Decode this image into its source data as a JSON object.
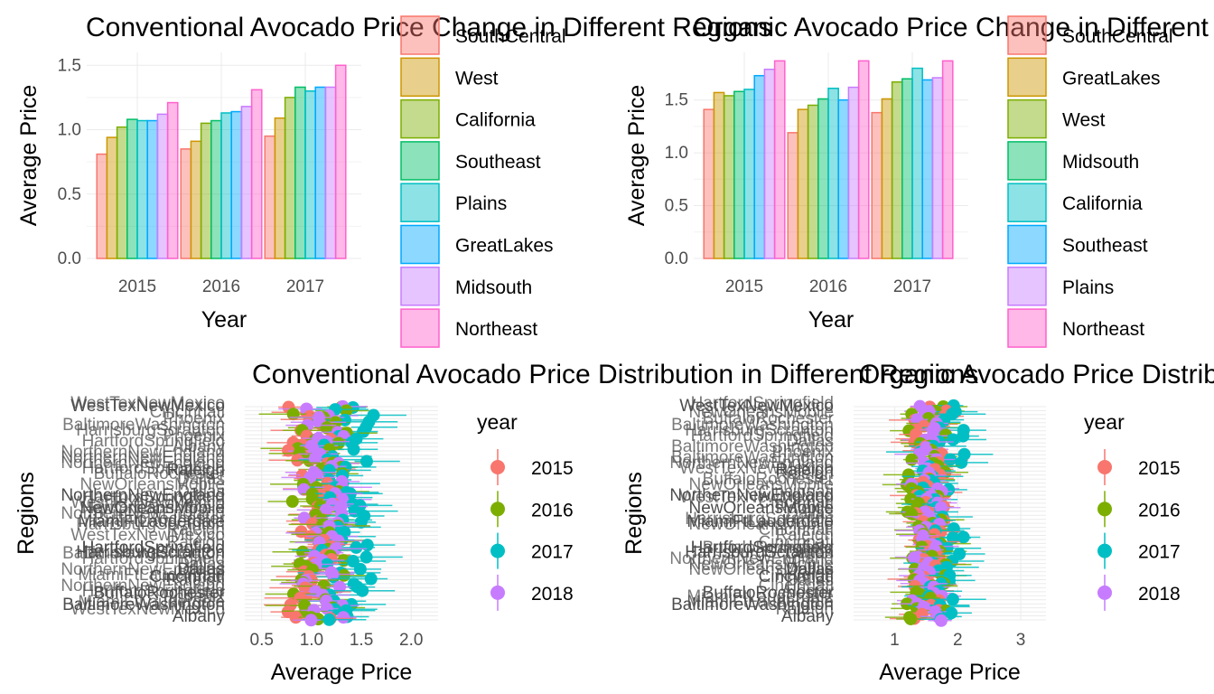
{
  "chart_data": [
    {
      "type": "bar",
      "title": "Conventional Avocado Price Change in Different Regions",
      "xlabel": "Year",
      "ylabel": "Average Price",
      "ylim": [
        0,
        1.6
      ],
      "yticks": [
        "0.0",
        "0.5",
        "1.0",
        "1.5"
      ],
      "categories": [
        "2015",
        "2016",
        "2017"
      ],
      "legend_position": "right",
      "series": [
        {
          "name": "SouthCentral",
          "color": "#F8766D",
          "values": [
            0.81,
            0.85,
            0.95
          ]
        },
        {
          "name": "West",
          "color": "#CD9600",
          "values": [
            0.94,
            0.91,
            1.09
          ]
        },
        {
          "name": "California",
          "color": "#7CAE00",
          "values": [
            1.02,
            1.05,
            1.25
          ]
        },
        {
          "name": "Southeast",
          "color": "#00BE67",
          "values": [
            1.08,
            1.07,
            1.33
          ]
        },
        {
          "name": "Plains",
          "color": "#00BFC4",
          "values": [
            1.07,
            1.13,
            1.3
          ]
        },
        {
          "name": "GreatLakes",
          "color": "#00A9FF",
          "values": [
            1.07,
            1.14,
            1.33
          ]
        },
        {
          "name": "Midsouth",
          "color": "#C77CFF",
          "values": [
            1.12,
            1.18,
            1.33
          ]
        },
        {
          "name": "Northeast",
          "color": "#FF61CC",
          "values": [
            1.21,
            1.31,
            1.5
          ]
        }
      ]
    },
    {
      "type": "bar",
      "title": "Organic Avocado Price Change in Different Regions",
      "xlabel": "Year",
      "ylabel": "Average Price",
      "ylim": [
        0,
        1.95
      ],
      "yticks": [
        "0.0",
        "0.5",
        "1.0",
        "1.5"
      ],
      "categories": [
        "2015",
        "2016",
        "2017"
      ],
      "legend_position": "right",
      "series": [
        {
          "name": "SouthCentral",
          "color": "#F8766D",
          "values": [
            1.41,
            1.19,
            1.38
          ]
        },
        {
          "name": "GreatLakes",
          "color": "#CD9600",
          "values": [
            1.57,
            1.41,
            1.51
          ]
        },
        {
          "name": "West",
          "color": "#7CAE00",
          "values": [
            1.54,
            1.45,
            1.67
          ]
        },
        {
          "name": "Midsouth",
          "color": "#00BE67",
          "values": [
            1.58,
            1.51,
            1.7
          ]
        },
        {
          "name": "California",
          "color": "#00BFC4",
          "values": [
            1.6,
            1.61,
            1.8
          ]
        },
        {
          "name": "Southeast",
          "color": "#00A9FF",
          "values": [
            1.73,
            1.5,
            1.69
          ]
        },
        {
          "name": "Plains",
          "color": "#C77CFF",
          "values": [
            1.79,
            1.62,
            1.71
          ]
        },
        {
          "name": "Northeast",
          "color": "#FF61CC",
          "values": [
            1.87,
            1.87,
            1.87
          ]
        }
      ]
    },
    {
      "type": "scatter",
      "title": "Conventional Avocado Price Distribution in Different Regions",
      "xlabel": "Average Price",
      "ylabel": "Regions",
      "xlim": [
        0.33,
        2.27
      ],
      "xticks": [
        0.5,
        1.0,
        1.5,
        2.0
      ],
      "xtick_labels": [
        "0.5",
        "1.0",
        "1.5",
        "2.0"
      ],
      "legend_title": "year",
      "legend_position": "right",
      "visible_region_labels": [
        "WestTexNewMexico",
        "Raleigh",
        "NorthernNewEngland",
        "NewOrleansMobile",
        "Phoenix",
        "MiamiFtLauderdale",
        "HartfordSpringfield",
        "HarrisburgScranton",
        "Cincinnati",
        "Dallas",
        "BuffaloRochester",
        "BaltimoreWashington",
        "Albany"
      ],
      "series": [
        {
          "name": "2015",
          "color": "#F8766D",
          "center": 1.0,
          "spread": 0.3
        },
        {
          "name": "2016",
          "color": "#7CAE00",
          "center": 1.08,
          "spread": 0.34
        },
        {
          "name": "2017",
          "color": "#00BFC4",
          "center": 1.36,
          "spread": 0.36
        },
        {
          "name": "2018",
          "color": "#C77CFF",
          "center": 1.12,
          "spread": 0.26
        }
      ]
    },
    {
      "type": "scatter",
      "title": "Organic Avocado Price Distribution in Different Regions",
      "xlabel": "Average Price",
      "ylabel": "Regions",
      "xlim": [
        0.35,
        3.4
      ],
      "xticks": [
        1,
        2,
        3
      ],
      "xtick_labels": [
        "1",
        "2",
        "3"
      ],
      "legend_title": "year",
      "legend_position": "right",
      "visible_region_labels": [
        "WestTexNewMexico",
        "Raleigh",
        "NorthernNewEngland",
        "NewOrleansMobile",
        "Phoenix",
        "MiamiFtLauderdale",
        "HartfordSpringfield",
        "HarrisburgScranton",
        "Cincinnati",
        "Dallas",
        "BuffaloRochester",
        "BaltimoreWashington",
        "Albany"
      ],
      "series": [
        {
          "name": "2015",
          "color": "#F8766D",
          "center": 1.55,
          "spread": 0.35
        },
        {
          "name": "2016",
          "color": "#7CAE00",
          "center": 1.5,
          "spread": 0.4
        },
        {
          "name": "2017",
          "color": "#00BFC4",
          "center": 1.75,
          "spread": 0.45
        },
        {
          "name": "2018",
          "color": "#C77CFF",
          "center": 1.5,
          "spread": 0.33
        }
      ]
    }
  ]
}
